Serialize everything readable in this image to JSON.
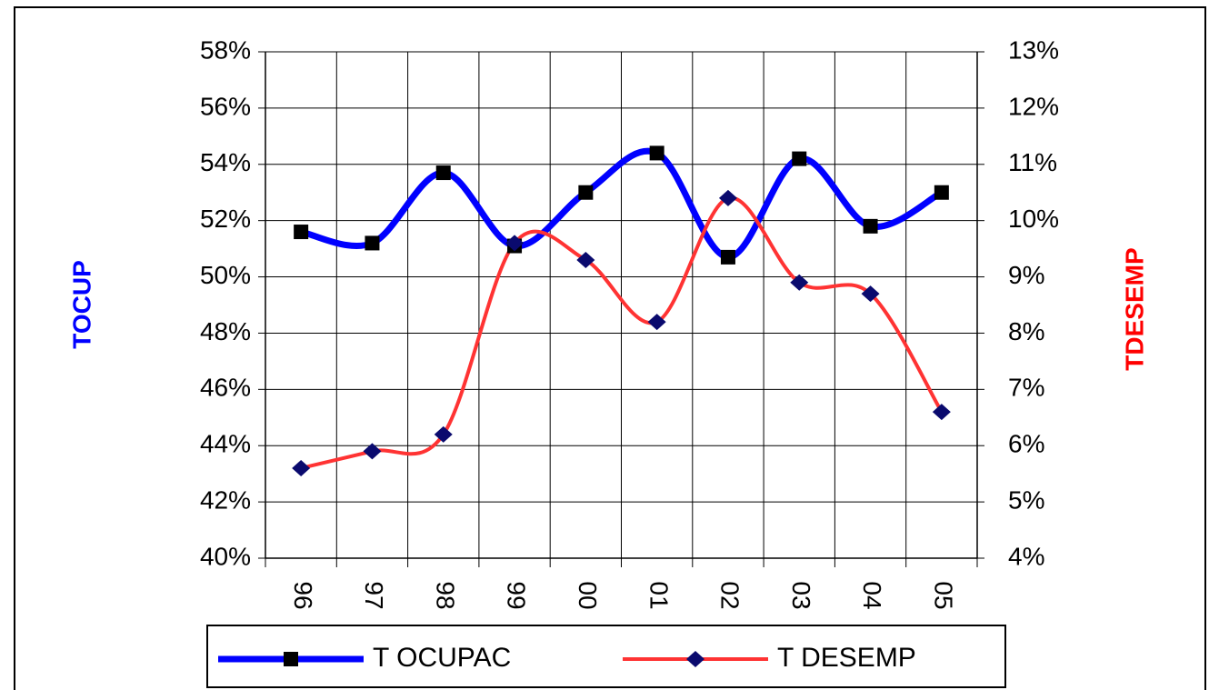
{
  "chart_data": {
    "type": "line",
    "y_label": "TOCUP",
    "y2_label": "TDESEMP",
    "categories": [
      "96",
      "97",
      "98",
      "99",
      "00",
      "01",
      "02",
      "03",
      "04",
      "05"
    ],
    "series": [
      {
        "name": "T OCUPAC",
        "color": "#0000ff",
        "axis": "y",
        "marker": "square",
        "values": [
          51.6,
          51.2,
          53.7,
          51.1,
          53.0,
          54.4,
          50.7,
          54.2,
          51.8,
          53.0
        ]
      },
      {
        "name": "T DESEMP",
        "color": "#ff3333",
        "axis": "y2",
        "marker": "diamond",
        "values": [
          5.6,
          5.9,
          6.2,
          9.6,
          9.3,
          8.2,
          10.4,
          8.9,
          8.7,
          6.6
        ]
      }
    ],
    "ylim": [
      40,
      58
    ],
    "yticks": [
      {
        "value": 40,
        "label": "40%"
      },
      {
        "value": 42,
        "label": "42%"
      },
      {
        "value": 44,
        "label": "44%"
      },
      {
        "value": 46,
        "label": "46%"
      },
      {
        "value": 48,
        "label": "48%"
      },
      {
        "value": 50,
        "label": "50%"
      },
      {
        "value": 52,
        "label": "52%"
      },
      {
        "value": 54,
        "label": "54%"
      },
      {
        "value": 56,
        "label": "56%"
      },
      {
        "value": 58,
        "label": "58%"
      }
    ],
    "y2lim": [
      4,
      13
    ],
    "y2ticks": [
      {
        "value": 4,
        "label": "4%"
      },
      {
        "value": 5,
        "label": "5%"
      },
      {
        "value": 6,
        "label": "6%"
      },
      {
        "value": 7,
        "label": "7%"
      },
      {
        "value": 8,
        "label": "8%"
      },
      {
        "value": 9,
        "label": "9%"
      },
      {
        "value": 10,
        "label": "10%"
      },
      {
        "value": 11,
        "label": "11%"
      },
      {
        "value": 12,
        "label": "12%"
      },
      {
        "value": 13,
        "label": "13%"
      }
    ],
    "grid": true,
    "legend": "bottom"
  }
}
